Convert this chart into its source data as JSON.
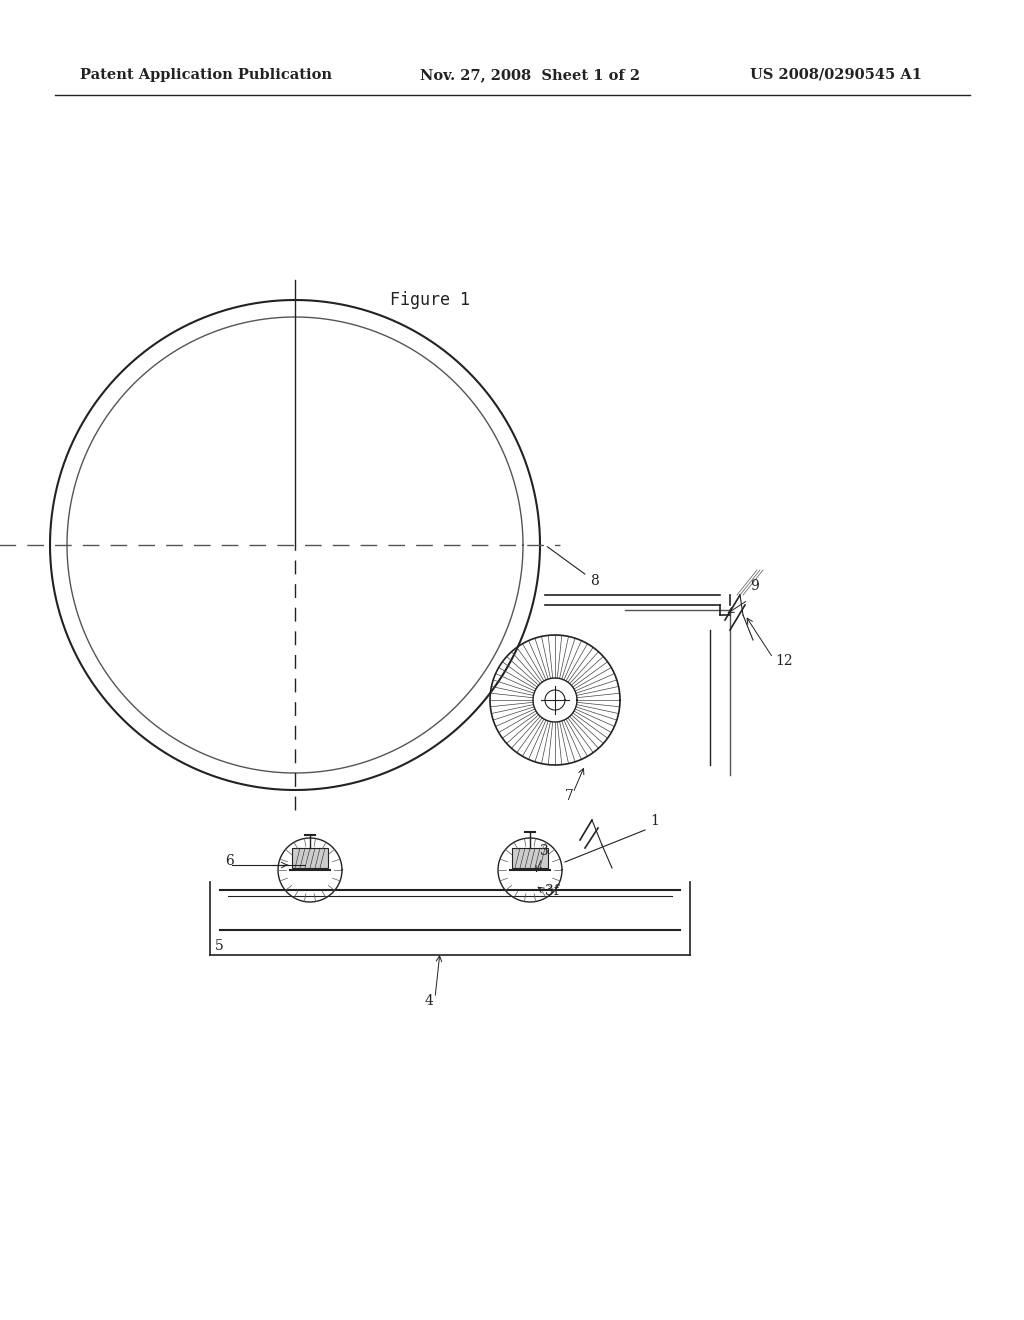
{
  "bg_color": "#ffffff",
  "header_text1": "Patent Application Publication",
  "header_text2": "Nov. 27, 2008  Sheet 1 of 2",
  "header_text3": "US 2008/0290545 A1",
  "figure_label": "Figure 1",
  "lc": "#222222",
  "lc2": "#555555"
}
